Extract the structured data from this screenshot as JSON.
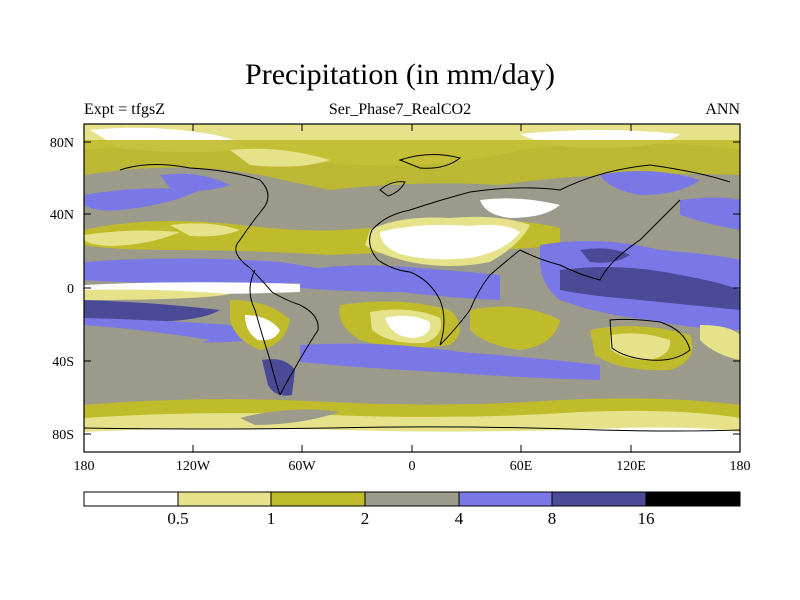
{
  "title": "Precipitation (in mm/day)",
  "left_label": "Expt = tfgsZ",
  "center_label": "Ser_Phase7_RealCO2",
  "right_label": "ANN",
  "map": {
    "lat_ticks": [
      "80N",
      "40N",
      "0",
      "40S",
      "80S"
    ],
    "lon_ticks": [
      "180",
      "120W",
      "60W",
      "0",
      "60E",
      "120E",
      "180"
    ]
  },
  "legend": {
    "colors": [
      "#ffffff",
      "#e6e28a",
      "#c0bb2a",
      "#9c9a8a",
      "#7a78e6",
      "#4a4a96",
      "#000000"
    ],
    "labels": [
      "0.5",
      "1",
      "2",
      "4",
      "8",
      "16"
    ]
  }
}
